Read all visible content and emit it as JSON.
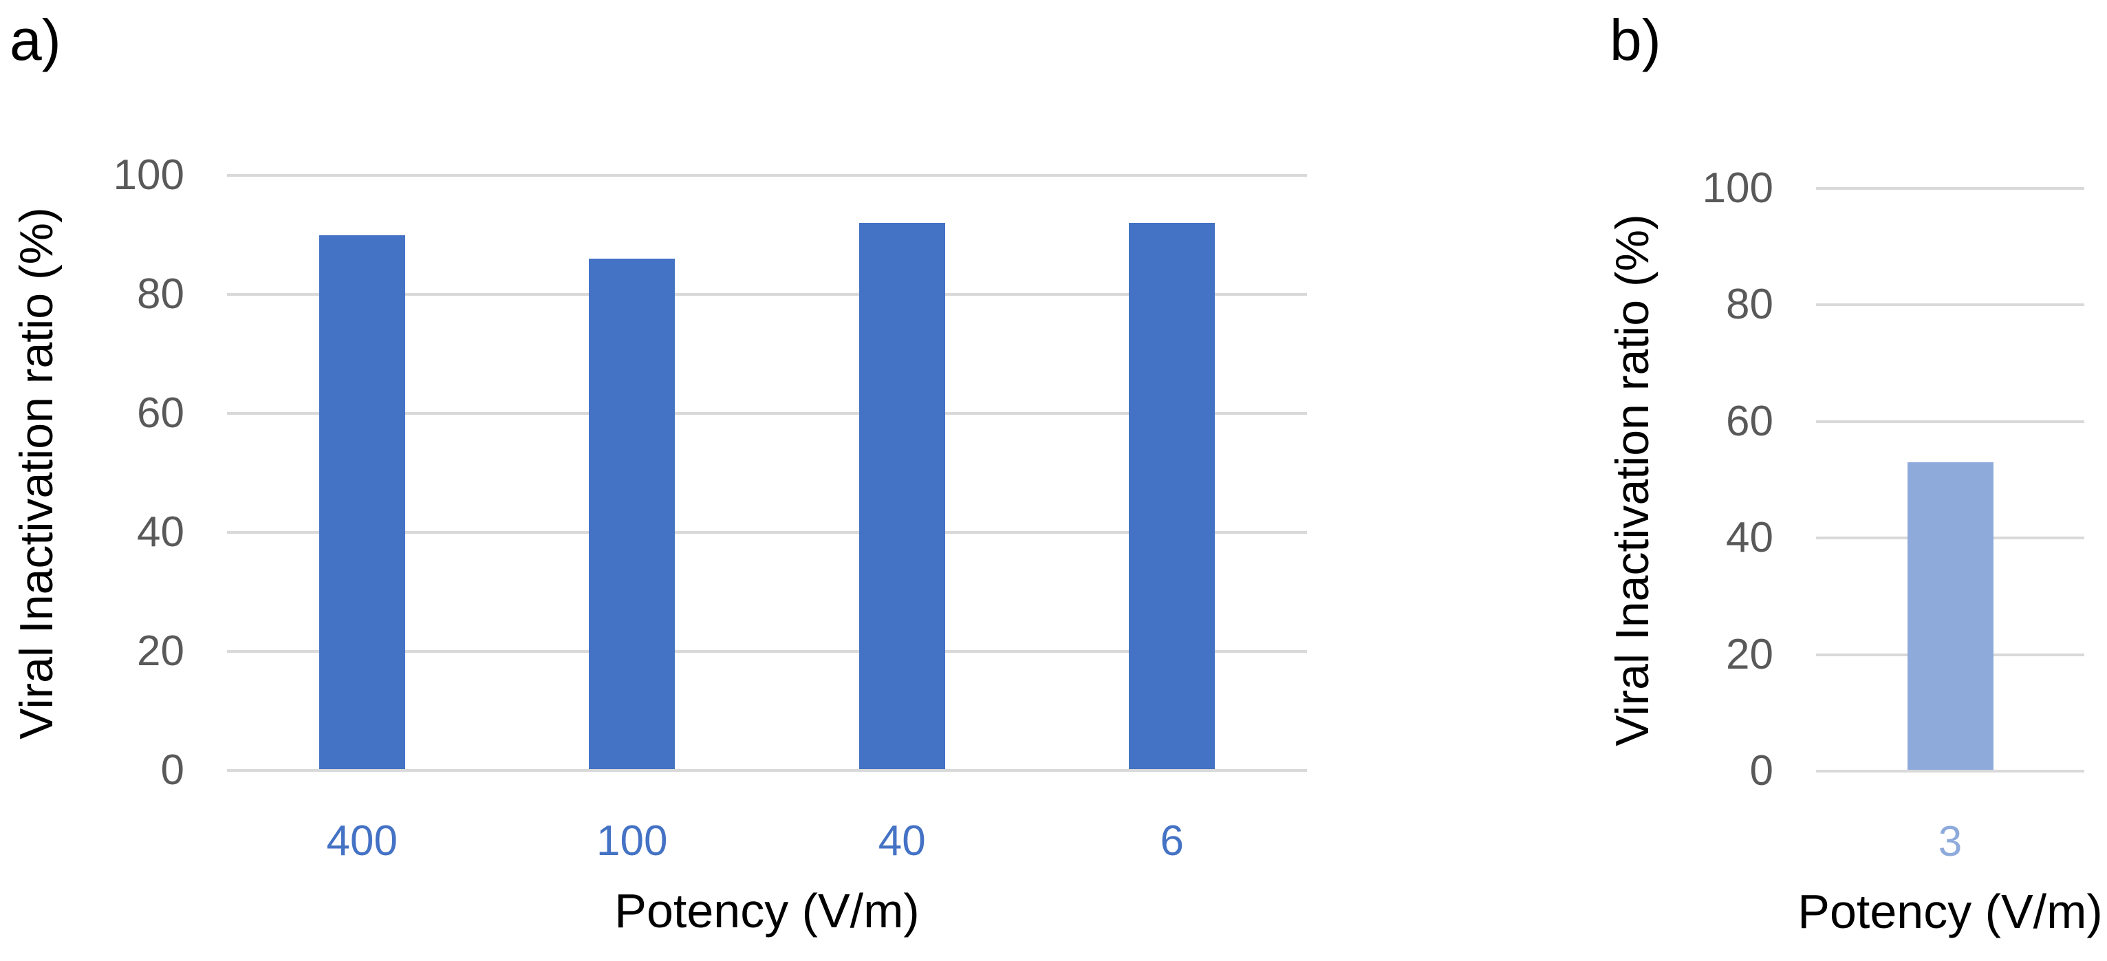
{
  "chart_data": [
    {
      "type": "bar",
      "panel_label": "a)",
      "title": "",
      "categories": [
        "400",
        "100",
        "40",
        "6"
      ],
      "values": [
        90,
        86,
        92,
        92
      ],
      "xlabel": "Potency (V/m)",
      "ylabel": "Viral Inactivation ratio (%)",
      "ylim": [
        0,
        100
      ],
      "yticks": [
        100,
        80,
        60,
        40,
        20,
        0
      ],
      "grid": true,
      "legend": false,
      "bar_color": "#4472C4",
      "category_label_color": "#4472C4"
    },
    {
      "type": "bar",
      "panel_label": "b)",
      "title": "",
      "categories": [
        "3"
      ],
      "values": [
        53
      ],
      "xlabel": "Potency (V/m)",
      "ylabel": "Viral Inactivation ratio (%)",
      "ylim": [
        0,
        100
      ],
      "yticks": [
        100,
        80,
        60,
        40,
        20,
        0
      ],
      "grid": true,
      "legend": false,
      "bar_color": "#8EAADB",
      "category_label_color": "#8EAADB"
    }
  ],
  "colors": {
    "background": "#FFFFFF",
    "gridline": "#D9D9D9",
    "axis_line": "#D9D9D9",
    "y_tick_label": "#595959",
    "axis_title": "#000000",
    "panel_label": "#000000"
  }
}
